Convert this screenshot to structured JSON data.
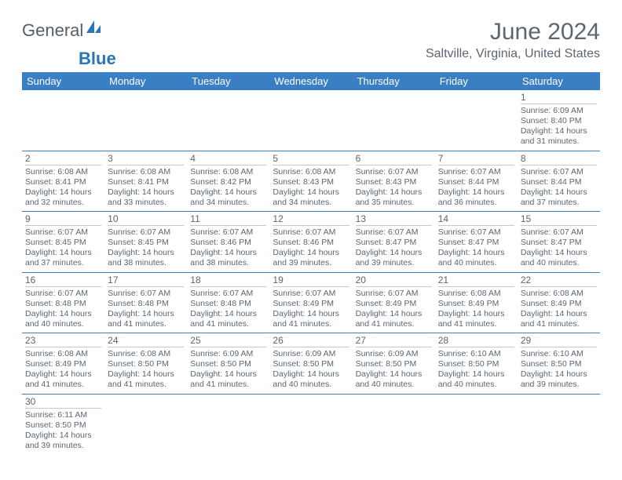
{
  "brand": {
    "part1": "General",
    "part2": "Blue"
  },
  "title": "June 2024",
  "location": "Saltville, Virginia, United States",
  "header_bg": "#3a7fc4",
  "header_fg": "#ffffff",
  "rule_color": "#3a7fc4",
  "text_color": "#5b6670",
  "day_headers": [
    "Sunday",
    "Monday",
    "Tuesday",
    "Wednesday",
    "Thursday",
    "Friday",
    "Saturday"
  ],
  "weeks": [
    [
      null,
      null,
      null,
      null,
      null,
      null,
      {
        "n": "1",
        "sr": "6:09 AM",
        "ss": "8:40 PM",
        "dl": "14 hours and 31 minutes."
      }
    ],
    [
      {
        "n": "2",
        "sr": "6:08 AM",
        "ss": "8:41 PM",
        "dl": "14 hours and 32 minutes."
      },
      {
        "n": "3",
        "sr": "6:08 AM",
        "ss": "8:41 PM",
        "dl": "14 hours and 33 minutes."
      },
      {
        "n": "4",
        "sr": "6:08 AM",
        "ss": "8:42 PM",
        "dl": "14 hours and 34 minutes."
      },
      {
        "n": "5",
        "sr": "6:08 AM",
        "ss": "8:43 PM",
        "dl": "14 hours and 34 minutes."
      },
      {
        "n": "6",
        "sr": "6:07 AM",
        "ss": "8:43 PM",
        "dl": "14 hours and 35 minutes."
      },
      {
        "n": "7",
        "sr": "6:07 AM",
        "ss": "8:44 PM",
        "dl": "14 hours and 36 minutes."
      },
      {
        "n": "8",
        "sr": "6:07 AM",
        "ss": "8:44 PM",
        "dl": "14 hours and 37 minutes."
      }
    ],
    [
      {
        "n": "9",
        "sr": "6:07 AM",
        "ss": "8:45 PM",
        "dl": "14 hours and 37 minutes."
      },
      {
        "n": "10",
        "sr": "6:07 AM",
        "ss": "8:45 PM",
        "dl": "14 hours and 38 minutes."
      },
      {
        "n": "11",
        "sr": "6:07 AM",
        "ss": "8:46 PM",
        "dl": "14 hours and 38 minutes."
      },
      {
        "n": "12",
        "sr": "6:07 AM",
        "ss": "8:46 PM",
        "dl": "14 hours and 39 minutes."
      },
      {
        "n": "13",
        "sr": "6:07 AM",
        "ss": "8:47 PM",
        "dl": "14 hours and 39 minutes."
      },
      {
        "n": "14",
        "sr": "6:07 AM",
        "ss": "8:47 PM",
        "dl": "14 hours and 40 minutes."
      },
      {
        "n": "15",
        "sr": "6:07 AM",
        "ss": "8:47 PM",
        "dl": "14 hours and 40 minutes."
      }
    ],
    [
      {
        "n": "16",
        "sr": "6:07 AM",
        "ss": "8:48 PM",
        "dl": "14 hours and 40 minutes."
      },
      {
        "n": "17",
        "sr": "6:07 AM",
        "ss": "8:48 PM",
        "dl": "14 hours and 41 minutes."
      },
      {
        "n": "18",
        "sr": "6:07 AM",
        "ss": "8:48 PM",
        "dl": "14 hours and 41 minutes."
      },
      {
        "n": "19",
        "sr": "6:07 AM",
        "ss": "8:49 PM",
        "dl": "14 hours and 41 minutes."
      },
      {
        "n": "20",
        "sr": "6:07 AM",
        "ss": "8:49 PM",
        "dl": "14 hours and 41 minutes."
      },
      {
        "n": "21",
        "sr": "6:08 AM",
        "ss": "8:49 PM",
        "dl": "14 hours and 41 minutes."
      },
      {
        "n": "22",
        "sr": "6:08 AM",
        "ss": "8:49 PM",
        "dl": "14 hours and 41 minutes."
      }
    ],
    [
      {
        "n": "23",
        "sr": "6:08 AM",
        "ss": "8:49 PM",
        "dl": "14 hours and 41 minutes."
      },
      {
        "n": "24",
        "sr": "6:08 AM",
        "ss": "8:50 PM",
        "dl": "14 hours and 41 minutes."
      },
      {
        "n": "25",
        "sr": "6:09 AM",
        "ss": "8:50 PM",
        "dl": "14 hours and 41 minutes."
      },
      {
        "n": "26",
        "sr": "6:09 AM",
        "ss": "8:50 PM",
        "dl": "14 hours and 40 minutes."
      },
      {
        "n": "27",
        "sr": "6:09 AM",
        "ss": "8:50 PM",
        "dl": "14 hours and 40 minutes."
      },
      {
        "n": "28",
        "sr": "6:10 AM",
        "ss": "8:50 PM",
        "dl": "14 hours and 40 minutes."
      },
      {
        "n": "29",
        "sr": "6:10 AM",
        "ss": "8:50 PM",
        "dl": "14 hours and 39 minutes."
      }
    ],
    [
      {
        "n": "30",
        "sr": "6:11 AM",
        "ss": "8:50 PM",
        "dl": "14 hours and 39 minutes."
      },
      null,
      null,
      null,
      null,
      null,
      null
    ]
  ],
  "labels": {
    "sunrise": "Sunrise:",
    "sunset": "Sunset:",
    "daylight": "Daylight:"
  }
}
